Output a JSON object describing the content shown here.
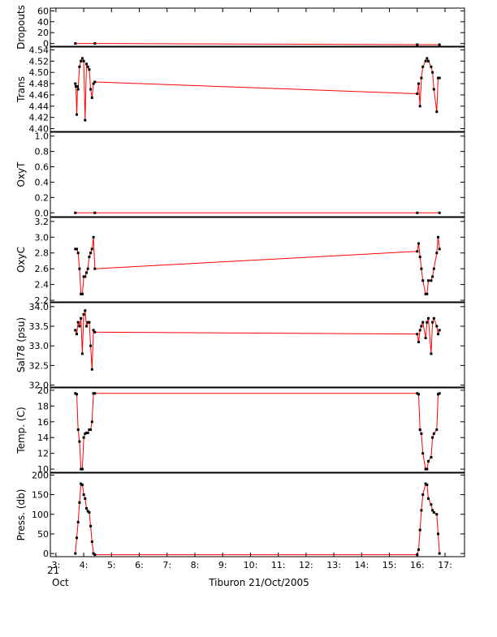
{
  "colors": {
    "background": "#ffffff",
    "axis": "#000000",
    "data_line": "#ff0000",
    "data_points": "#000000"
  },
  "footer": {
    "caption": "Tiburon 21/Oct/2005",
    "date_day": "21",
    "date_month": "Oct"
  },
  "chart_data": {
    "type": "line",
    "shared_x": {
      "unit": "hour",
      "range": [
        2.8,
        17.7
      ],
      "ticks": [
        3,
        4,
        5,
        6,
        7,
        8,
        9,
        10,
        11,
        12,
        13,
        14,
        15,
        16,
        17
      ],
      "tick_labels": [
        "3:",
        "4:",
        "5:",
        "6:",
        "7:",
        "8:",
        "9:",
        "10:",
        "11:",
        "12:",
        "13:",
        "14:",
        "15:",
        "16:",
        "17:"
      ]
    },
    "panels": [
      {
        "ylabel": "Dropouts",
        "ylim": [
          -5,
          65
        ],
        "yticks": [
          0,
          20,
          40,
          60
        ],
        "ytick_labels": [
          "0",
          "20",
          "40",
          "60"
        ],
        "x": [
          3.7,
          4.4,
          16.0,
          16.8
        ],
        "y": [
          0,
          0,
          -2,
          -2
        ]
      },
      {
        "ylabel": "Trans",
        "ylim": [
          4.395,
          4.545
        ],
        "yticks": [
          4.4,
          4.42,
          4.44,
          4.46,
          4.48,
          4.5,
          4.52,
          4.54
        ],
        "ytick_labels": [
          "4.40",
          "4.42",
          "4.44",
          "4.46",
          "4.48",
          "4.50",
          "4.52",
          "4.54"
        ],
        "x": [
          3.7,
          3.72,
          3.75,
          3.78,
          3.8,
          3.85,
          3.9,
          3.95,
          4.0,
          4.05,
          4.1,
          4.15,
          4.2,
          4.25,
          4.3,
          4.35,
          4.4,
          16.0,
          16.05,
          16.1,
          16.15,
          16.2,
          16.3,
          16.35,
          16.4,
          16.5,
          16.55,
          16.6,
          16.7,
          16.75,
          16.8
        ],
        "y": [
          4.48,
          4.475,
          4.425,
          4.475,
          4.47,
          4.51,
          4.52,
          4.525,
          4.52,
          4.415,
          4.515,
          4.51,
          4.505,
          4.47,
          4.455,
          4.48,
          4.483,
          4.462,
          4.48,
          4.44,
          4.49,
          4.51,
          4.52,
          4.525,
          4.52,
          4.51,
          4.5,
          4.47,
          4.43,
          4.49,
          4.49
        ]
      },
      {
        "ylabel": "OxyT",
        "ylim": [
          -0.05,
          1.05
        ],
        "yticks": [
          0,
          0.2,
          0.4,
          0.6,
          0.8,
          1.0
        ],
        "ytick_labels": [
          "0.0",
          "0.2",
          "0.4",
          "0.6",
          "0.8",
          "1.0"
        ],
        "x": [
          3.7,
          4.4,
          16.0,
          16.8
        ],
        "y": [
          0,
          0,
          0,
          0
        ]
      },
      {
        "ylabel": "OxyC",
        "ylim": [
          2.18,
          3.25
        ],
        "yticks": [
          2.2,
          2.4,
          2.6,
          2.8,
          3.0,
          3.2
        ],
        "ytick_labels": [
          "2.2",
          "2.4",
          "2.6",
          "2.8",
          "3.0",
          "3.2"
        ],
        "x": [
          3.7,
          3.75,
          3.8,
          3.85,
          3.9,
          3.95,
          4.0,
          4.05,
          4.1,
          4.15,
          4.2,
          4.25,
          4.3,
          4.35,
          4.4,
          16.0,
          16.05,
          16.1,
          16.15,
          16.2,
          16.3,
          16.35,
          16.4,
          16.5,
          16.55,
          16.6,
          16.7,
          16.75,
          16.8
        ],
        "y": [
          2.85,
          2.85,
          2.8,
          2.6,
          2.28,
          2.28,
          2.5,
          2.5,
          2.55,
          2.6,
          2.75,
          2.8,
          2.85,
          3.0,
          2.6,
          2.82,
          2.92,
          2.75,
          2.6,
          2.45,
          2.28,
          2.28,
          2.45,
          2.45,
          2.5,
          2.6,
          2.8,
          3.0,
          2.85
        ]
      },
      {
        "ylabel": "Sal78 (psu)",
        "ylim": [
          31.95,
          34.1
        ],
        "yticks": [
          32.0,
          32.5,
          33.0,
          33.5,
          34.0
        ],
        "ytick_labels": [
          "32.0",
          "32.5",
          "33.0",
          "33.5",
          "34.0"
        ],
        "x": [
          3.7,
          3.75,
          3.8,
          3.85,
          3.9,
          3.95,
          4.0,
          4.05,
          4.1,
          4.15,
          4.2,
          4.25,
          4.3,
          4.35,
          4.4,
          16.0,
          16.05,
          16.1,
          16.15,
          16.2,
          16.3,
          16.35,
          16.4,
          16.5,
          16.55,
          16.6,
          16.7,
          16.75,
          16.8
        ],
        "y": [
          33.4,
          33.3,
          33.6,
          33.5,
          33.7,
          32.8,
          33.8,
          33.9,
          33.5,
          33.6,
          33.6,
          33.0,
          32.4,
          33.4,
          33.35,
          33.3,
          33.1,
          33.4,
          33.5,
          33.6,
          33.2,
          33.6,
          33.7,
          32.8,
          33.6,
          33.7,
          33.5,
          33.3,
          33.4
        ]
      },
      {
        "ylabel": "Temp. (C)",
        "ylim": [
          9.6,
          20.3
        ],
        "yticks": [
          10,
          12,
          14,
          16,
          18,
          20
        ],
        "ytick_labels": [
          "10",
          "12",
          "14",
          "16",
          "18",
          "20"
        ],
        "x": [
          3.7,
          3.75,
          3.8,
          3.85,
          3.9,
          3.95,
          4.0,
          4.05,
          4.1,
          4.15,
          4.2,
          4.25,
          4.3,
          4.35,
          4.4,
          16.0,
          16.05,
          16.1,
          16.15,
          16.2,
          16.3,
          16.35,
          16.4,
          16.5,
          16.55,
          16.6,
          16.7,
          16.75,
          16.8
        ],
        "y": [
          19.6,
          19.5,
          15.0,
          13.5,
          10.0,
          10.0,
          14.0,
          14.5,
          14.6,
          14.6,
          15.0,
          15.0,
          16.0,
          19.6,
          19.6,
          19.6,
          19.5,
          15.0,
          14.5,
          12.0,
          10.0,
          10.0,
          11.0,
          11.5,
          14.0,
          14.5,
          15.0,
          19.5,
          19.6
        ]
      },
      {
        "ylabel": "Press. (db)",
        "ylim": [
          -8,
          205
        ],
        "yticks": [
          0,
          50,
          100,
          150,
          200
        ],
        "ytick_labels": [
          "0",
          "50",
          "100",
          "150",
          "200"
        ],
        "x": [
          3.7,
          3.75,
          3.8,
          3.85,
          3.9,
          3.95,
          4.0,
          4.05,
          4.1,
          4.15,
          4.2,
          4.25,
          4.3,
          4.35,
          4.4,
          16.0,
          16.05,
          16.1,
          16.15,
          16.2,
          16.3,
          16.35,
          16.4,
          16.5,
          16.55,
          16.6,
          16.7,
          16.75,
          16.8
        ],
        "y": [
          0,
          40,
          80,
          130,
          178,
          175,
          150,
          140,
          115,
          108,
          105,
          70,
          30,
          0,
          -3,
          -3,
          10,
          60,
          110,
          150,
          178,
          175,
          140,
          125,
          110,
          105,
          100,
          50,
          0
        ]
      }
    ]
  }
}
